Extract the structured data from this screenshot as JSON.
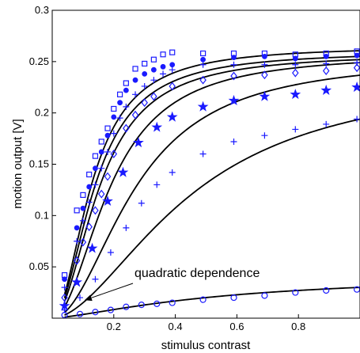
{
  "chart_data": {
    "type": "scatter",
    "title": "",
    "xlabel": "stimulus contrast",
    "ylabel": "motion output  [V]",
    "xlim": [
      0,
      1
    ],
    "ylim": [
      0,
      0.3
    ],
    "x_ticks": [
      0.2,
      0.4,
      0.6,
      0.8
    ],
    "y_ticks": [
      0.05,
      0.1,
      0.15,
      0.2,
      0.25,
      0.3
    ],
    "x_tick_labels": [
      "0.2",
      "0.4",
      "0.6",
      "0.8"
    ],
    "y_tick_labels": [
      "0.05",
      "0.1",
      "0.15",
      "0.2",
      "0.25",
      "0.3"
    ],
    "grid": false,
    "marker_color": "#1a1aff",
    "fit_color": "#000000",
    "annotation": {
      "text": "quadratic dependence",
      "arrow_to": [
        0.1,
        0.016
      ]
    },
    "series": [
      {
        "marker": "square",
        "fit": {
          "amp": 0.265,
          "c50": 0.13,
          "n": 2.0
        },
        "x": [
          0.04,
          0.08,
          0.1,
          0.12,
          0.14,
          0.16,
          0.18,
          0.2,
          0.22,
          0.24,
          0.27,
          0.3,
          0.33,
          0.36,
          0.39,
          0.49,
          0.59,
          0.69,
          0.79,
          0.89,
          0.99
        ],
        "y": [
          0.042,
          0.105,
          0.12,
          0.14,
          0.158,
          0.172,
          0.185,
          0.204,
          0.218,
          0.229,
          0.243,
          0.248,
          0.252,
          0.257,
          0.259,
          0.258,
          0.258,
          0.258,
          0.257,
          0.258,
          0.26
        ]
      },
      {
        "marker": "dot",
        "fit": {
          "amp": 0.26,
          "c50": 0.14,
          "n": 2.0
        },
        "x": [
          0.04,
          0.08,
          0.1,
          0.12,
          0.14,
          0.16,
          0.18,
          0.2,
          0.22,
          0.24,
          0.27,
          0.3,
          0.33,
          0.36,
          0.39,
          0.49,
          0.59,
          0.69,
          0.79,
          0.89,
          0.99
        ],
        "y": [
          0.038,
          0.088,
          0.107,
          0.128,
          0.146,
          0.162,
          0.178,
          0.196,
          0.21,
          0.222,
          0.232,
          0.238,
          0.242,
          0.245,
          0.247,
          0.252,
          0.254,
          0.255,
          0.253,
          0.255,
          0.256
        ]
      },
      {
        "marker": "plus",
        "fit": {
          "amp": 0.258,
          "c50": 0.155,
          "n": 2.0
        },
        "x": [
          0.04,
          0.08,
          0.1,
          0.12,
          0.14,
          0.16,
          0.18,
          0.2,
          0.22,
          0.24,
          0.27,
          0.3,
          0.33,
          0.36,
          0.39,
          0.49,
          0.59,
          0.69,
          0.79,
          0.89,
          0.99
        ],
        "y": [
          0.03,
          0.075,
          0.095,
          0.113,
          0.13,
          0.146,
          0.162,
          0.18,
          0.195,
          0.206,
          0.218,
          0.226,
          0.232,
          0.238,
          0.242,
          0.247,
          0.247,
          0.247,
          0.247,
          0.248,
          0.249
        ]
      },
      {
        "marker": "diamond",
        "fit": {
          "amp": 0.258,
          "c50": 0.19,
          "n": 2.0
        },
        "x": [
          0.04,
          0.08,
          0.1,
          0.12,
          0.14,
          0.16,
          0.18,
          0.2,
          0.24,
          0.27,
          0.3,
          0.33,
          0.39,
          0.49,
          0.59,
          0.69,
          0.79,
          0.89,
          0.99
        ],
        "y": [
          0.02,
          0.056,
          0.074,
          0.089,
          0.105,
          0.121,
          0.138,
          0.16,
          0.185,
          0.198,
          0.21,
          0.216,
          0.226,
          0.232,
          0.236,
          0.237,
          0.239,
          0.241,
          0.244
        ]
      },
      {
        "marker": "star",
        "fit": {
          "amp": 0.254,
          "c50": 0.27,
          "n": 2.0
        },
        "x": [
          0.04,
          0.08,
          0.13,
          0.18,
          0.23,
          0.28,
          0.34,
          0.39,
          0.49,
          0.59,
          0.69,
          0.79,
          0.89,
          0.99
        ],
        "y": [
          0.012,
          0.035,
          0.068,
          0.114,
          0.142,
          0.171,
          0.186,
          0.196,
          0.206,
          0.212,
          0.216,
          0.218,
          0.222,
          0.225
        ]
      },
      {
        "marker": "plus",
        "fit": {
          "amp": 0.24,
          "c50": 0.45,
          "n": 1.8
        },
        "x": [
          0.04,
          0.09,
          0.14,
          0.19,
          0.24,
          0.29,
          0.34,
          0.39,
          0.49,
          0.59,
          0.69,
          0.79,
          0.89,
          0.99
        ],
        "y": [
          0.008,
          0.02,
          0.038,
          0.064,
          0.088,
          0.112,
          0.13,
          0.142,
          0.16,
          0.172,
          0.178,
          0.184,
          0.189,
          0.194
        ]
      },
      {
        "marker": "circle",
        "fit": {
          "amp": 0.043,
          "c50": 0.55,
          "n": 1.4
        },
        "x": [
          0.04,
          0.09,
          0.14,
          0.19,
          0.24,
          0.29,
          0.34,
          0.39,
          0.49,
          0.59,
          0.69,
          0.79,
          0.89,
          0.99
        ],
        "y": [
          0.003,
          0.004,
          0.006,
          0.008,
          0.011,
          0.013,
          0.014,
          0.015,
          0.018,
          0.02,
          0.022,
          0.025,
          0.027,
          0.028
        ]
      }
    ]
  }
}
